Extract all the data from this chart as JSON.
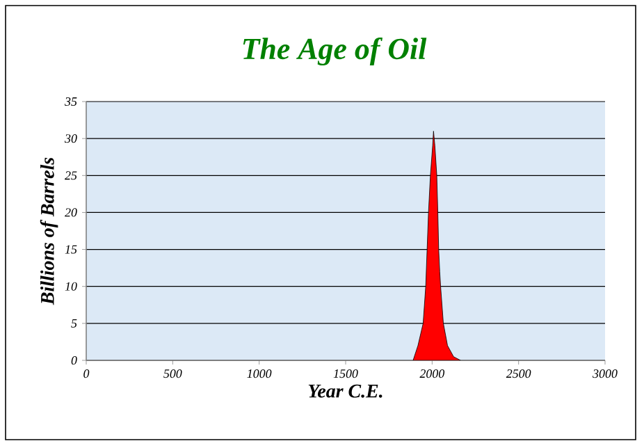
{
  "chart_data": {
    "type": "area",
    "title": "The Age of Oil",
    "xlabel": "Year C.E.",
    "ylabel": "Billions of Barrels",
    "x": [
      1890,
      1918,
      1948,
      1963,
      1971,
      1979,
      1990,
      2003,
      2008,
      2016,
      2027,
      2033,
      2038,
      2044,
      2049,
      2065,
      2089,
      2124,
      2164
    ],
    "values": [
      0,
      2,
      5,
      10,
      15,
      20,
      25,
      29,
      31,
      29,
      25,
      20,
      15,
      12,
      10,
      5,
      2,
      0.5,
      0
    ],
    "color": "#ff0000",
    "xlim": [
      0,
      3000
    ],
    "ylim": [
      0,
      35
    ],
    "xticks": [
      0,
      500,
      1000,
      1500,
      2000,
      2500,
      3000
    ],
    "yticks": [
      0,
      5,
      10,
      15,
      20,
      25,
      30,
      35
    ],
    "grid": "y"
  }
}
